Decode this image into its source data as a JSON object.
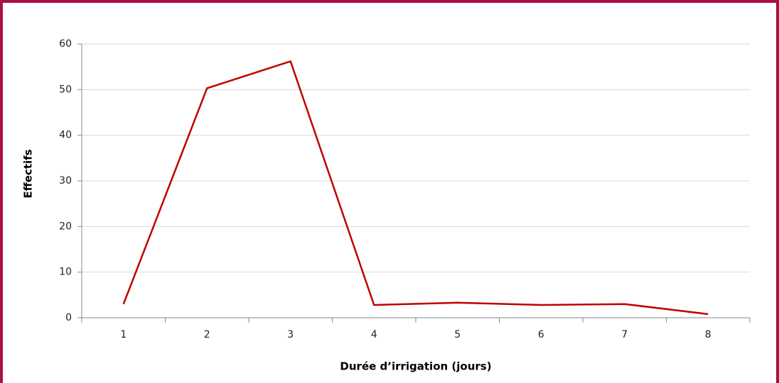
{
  "chart_data": {
    "type": "line",
    "xlabel": "Durée d’irrigation (jours)",
    "ylabel": "Effectifs",
    "categories": [
      "1",
      "2",
      "3",
      "4",
      "5",
      "6",
      "7",
      "8"
    ],
    "series": [
      {
        "name": "Effectifs",
        "color": "#c00000",
        "values": [
          3,
          50.3,
          56.2,
          2.8,
          3.3,
          2.8,
          3,
          0.8
        ]
      }
    ],
    "ylim": [
      0,
      60
    ],
    "yticks": [
      0,
      10,
      20,
      30,
      40,
      50,
      60
    ],
    "grid": true
  }
}
